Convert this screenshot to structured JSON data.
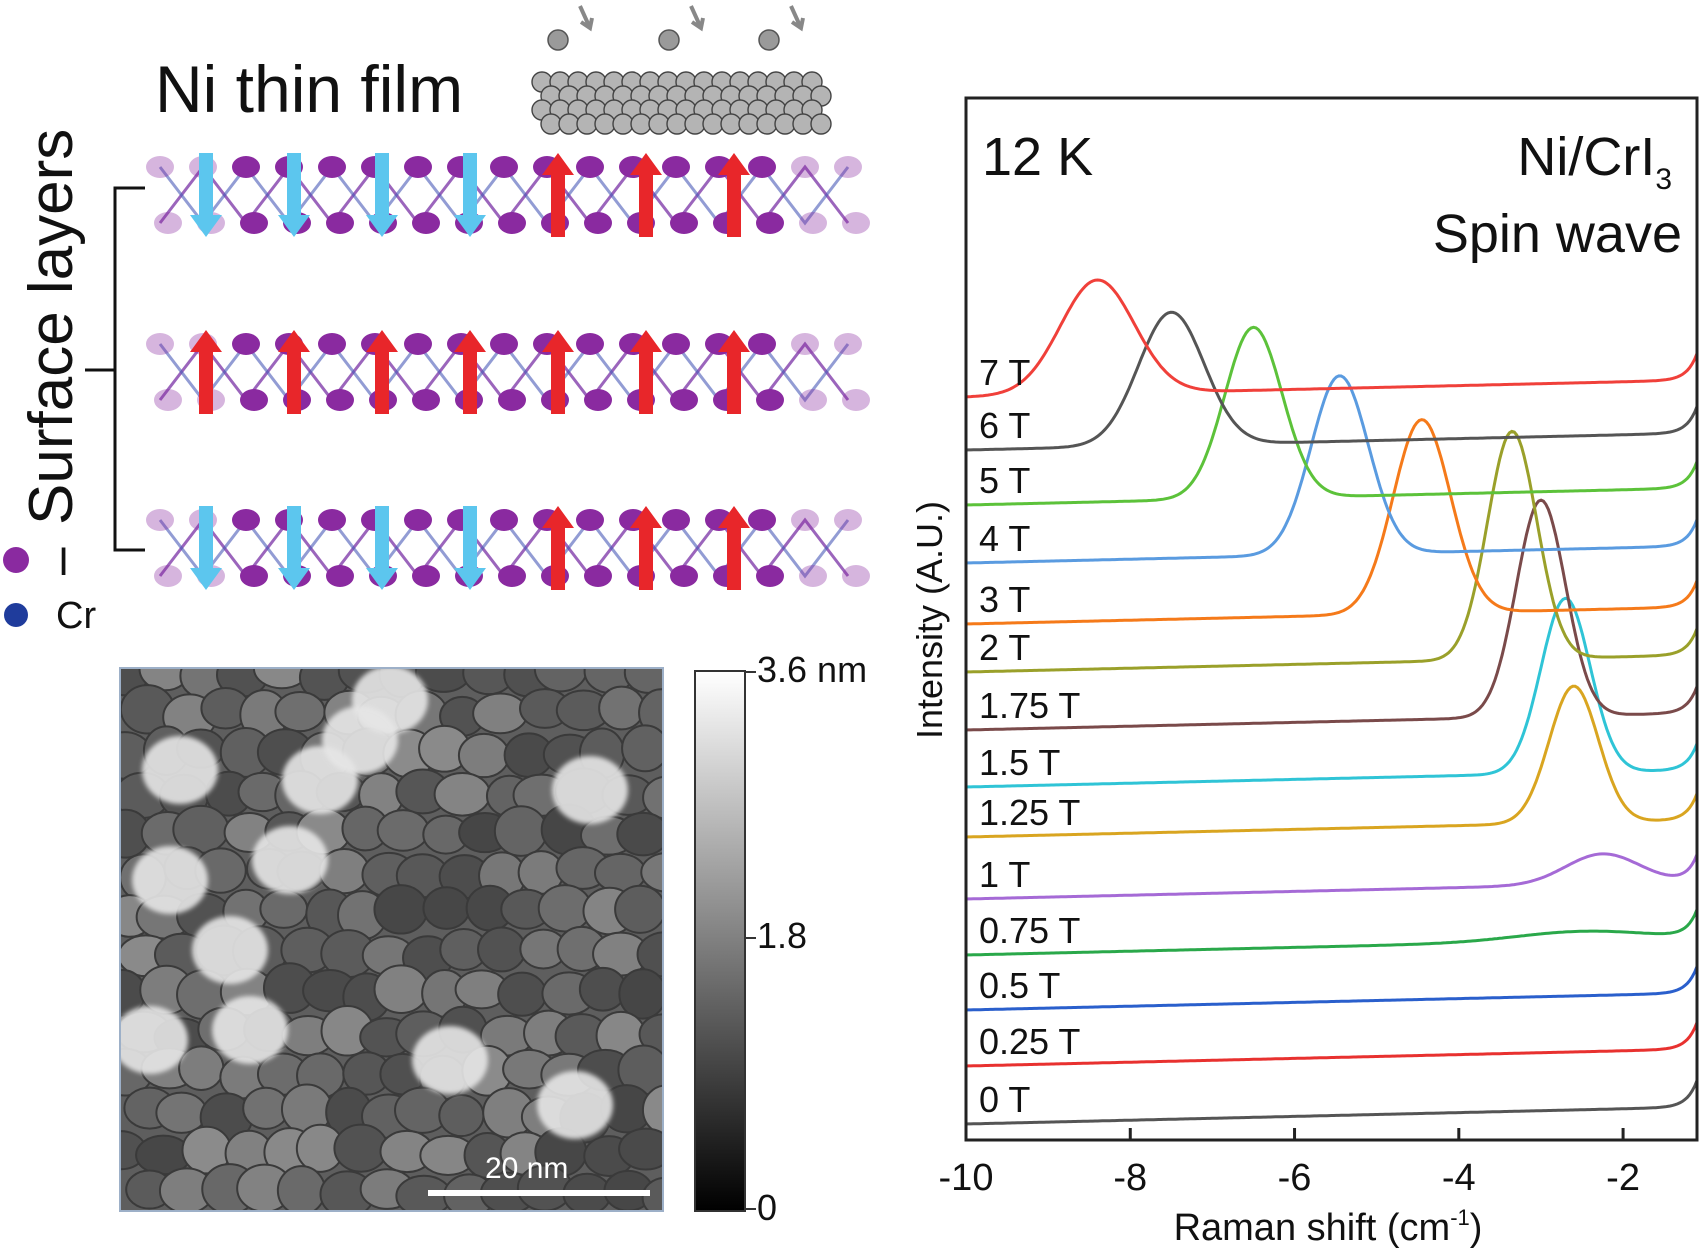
{
  "schematic": {
    "film_label": "Ni thin film",
    "surface_label": "Surface layers",
    "legend": [
      {
        "label": "I",
        "color": "#8a2aa0"
      },
      {
        "label": "Cr",
        "color": "#1f3c9c"
      }
    ],
    "layers": [
      {
        "name": "top",
        "spins": [
          "down",
          "down",
          "down",
          "down",
          "up",
          "up",
          "up"
        ]
      },
      {
        "name": "middle",
        "spins": [
          "up",
          "up",
          "up",
          "up",
          "up",
          "up",
          "up"
        ]
      },
      {
        "name": "bottom",
        "spins": [
          "down",
          "down",
          "down",
          "down",
          "up",
          "up",
          "up"
        ]
      }
    ],
    "colors": {
      "spin_up": "#e8262a",
      "spin_down": "#5cc6ee",
      "iodine": "#8a2aa0",
      "chromium": "#1f3c9c"
    }
  },
  "afm": {
    "colorbar_max": "3.6 nm",
    "colorbar_mid": "1.8",
    "colorbar_min": "0",
    "scalebar": "20 nm"
  },
  "chart_data": {
    "type": "line",
    "title": "12 K",
    "annotation_line1": "Ni/CrI",
    "annotation_line1_sub": "3",
    "annotation_line2": "Spin wave",
    "xlabel": "Raman shift (cm",
    "xlabel_sup": "-1",
    "xlabel_end": ")",
    "ylabel": "Intensity (A.U.)",
    "xlim": [
      -10,
      -1.1
    ],
    "xticks": [
      -10,
      -8,
      -6,
      -4,
      -2
    ],
    "xtick_labels": [
      "-10",
      "-8",
      "-6",
      "-4",
      "-2"
    ],
    "series": [
      {
        "name": "0 T",
        "color": "#555555",
        "peak": null,
        "amp": 0,
        "width": 0.3
      },
      {
        "name": "0.25 T",
        "color": "#e8312f",
        "peak": null,
        "amp": 0,
        "width": 0.3
      },
      {
        "name": "0.5 T",
        "color": "#2a5fcc",
        "peak": null,
        "amp": 0,
        "width": 0.3
      },
      {
        "name": "0.75 T",
        "color": "#2aa84a",
        "peak": -2.5,
        "amp": 0.25,
        "width": 0.8
      },
      {
        "name": "1 T",
        "color": "#a56ad6",
        "peak": -2.25,
        "amp": 0.8,
        "width": 0.45
      },
      {
        "name": "1.25 T",
        "color": "#d9a520",
        "peak": -2.6,
        "amp": 3.6,
        "width": 0.3
      },
      {
        "name": "1.5 T",
        "color": "#2fc4d6",
        "peak": -2.7,
        "amp": 4.6,
        "width": 0.3
      },
      {
        "name": "1.75 T",
        "color": "#7a4a4a",
        "peak": -3.0,
        "amp": 5.7,
        "width": 0.3
      },
      {
        "name": "2 T",
        "color": "#9aa02a",
        "peak": -3.35,
        "amp": 6.0,
        "width": 0.3
      },
      {
        "name": "3 T",
        "color": "#f57a1a",
        "peak": -4.45,
        "amp": 5.1,
        "width": 0.35
      },
      {
        "name": "4 T",
        "color": "#5a9be0",
        "peak": -5.45,
        "amp": 4.7,
        "width": 0.35
      },
      {
        "name": "5 T",
        "color": "#5cc23a",
        "peak": -6.5,
        "amp": 4.5,
        "width": 0.35
      },
      {
        "name": "6 T",
        "color": "#555555",
        "peak": -7.5,
        "amp": 3.5,
        "width": 0.4
      },
      {
        "name": "7 T",
        "color": "#f0403a",
        "peak": -8.4,
        "amp": 3.0,
        "width": 0.45
      }
    ]
  }
}
